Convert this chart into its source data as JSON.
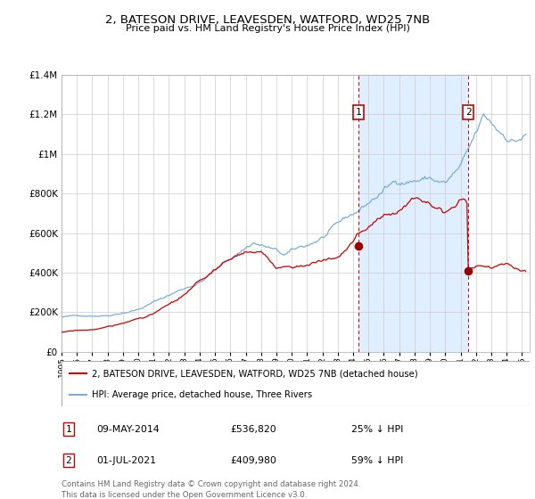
{
  "title": "2, BATESON DRIVE, LEAVESDEN, WATFORD, WD25 7NB",
  "subtitle": "Price paid vs. HM Land Registry's House Price Index (HPI)",
  "ylim": [
    0,
    1400000
  ],
  "yticks": [
    0,
    200000,
    400000,
    600000,
    800000,
    1000000,
    1200000,
    1400000
  ],
  "ytick_labels": [
    "£0",
    "£200K",
    "£400K",
    "£600K",
    "£800K",
    "£1M",
    "£1.2M",
    "£1.4M"
  ],
  "x_start_year": 1995,
  "x_end_year": 2025,
  "sale1_year": 2014.35,
  "sale1_price": 536820,
  "sale2_year": 2021.5,
  "sale2_price": 409980,
  "red_line_color": "#cc0000",
  "blue_line_color": "#7aaddb",
  "blue_fill_color": "#ddeeff",
  "grid_color": "#cccccc",
  "legend1": "2, BATESON DRIVE, LEAVESDEN, WATFORD, WD25 7NB (detached house)",
  "legend2": "HPI: Average price, detached house, Three Rivers",
  "annotation1_date": "09-MAY-2014",
  "annotation1_price": "£536,820",
  "annotation1_pct": "25% ↓ HPI",
  "annotation2_date": "01-JUL-2021",
  "annotation2_price": "£409,980",
  "annotation2_pct": "59% ↓ HPI",
  "footer": "Contains HM Land Registry data © Crown copyright and database right 2024.\nThis data is licensed under the Open Government Licence v3.0."
}
